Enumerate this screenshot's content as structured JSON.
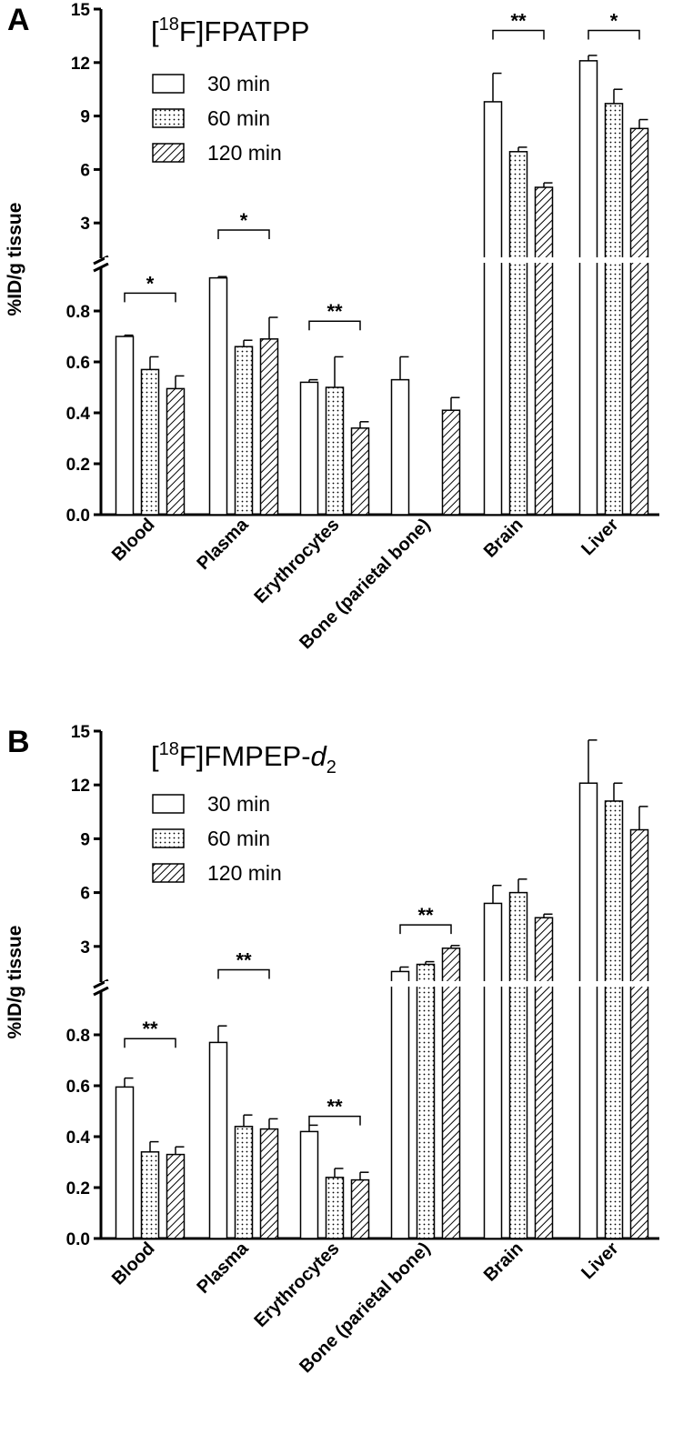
{
  "chart_data": [
    {
      "type": "bar",
      "panel": "A",
      "title": "[18F]FPATPP",
      "title_parts": {
        "open": "[",
        "sup": "18",
        "rest": "F]FPATPP",
        "italic_tail": "",
        "sub": ""
      },
      "ylabel": "%ID/g tissue",
      "y_scale": "broken",
      "y_lower_range": [
        0,
        1.0
      ],
      "y_upper_range": [
        1.0,
        15
      ],
      "y_ticks_lower": [
        "0.0",
        "0.2",
        "0.4",
        "0.6",
        "0.8"
      ],
      "y_ticks_upper": [
        "3",
        "6",
        "9",
        "12",
        "15"
      ],
      "categories": [
        "Blood",
        "Plasma",
        "Erythrocytes",
        "Bone (parietal bone)",
        "Brain",
        "Liver"
      ],
      "series": [
        {
          "name": "30 min",
          "pattern": "open",
          "values": [
            0.7,
            0.93,
            0.52,
            0.53,
            9.8,
            12.1
          ],
          "errors": [
            0.005,
            0.005,
            0.01,
            0.09,
            1.6,
            0.3
          ]
        },
        {
          "name": "60 min",
          "pattern": "dotted",
          "values": [
            0.57,
            0.66,
            0.5,
            null,
            7.0,
            9.7
          ],
          "errors": [
            0.05,
            0.025,
            0.12,
            null,
            0.25,
            0.8
          ]
        },
        {
          "name": "120 min",
          "pattern": "hatched",
          "values": [
            0.495,
            0.69,
            0.34,
            0.41,
            5.0,
            8.3
          ],
          "errors": [
            0.05,
            0.085,
            0.025,
            0.05,
            0.25,
            0.5
          ]
        }
      ],
      "significance": [
        {
          "category": "Blood",
          "label": "*",
          "y": 0.87
        },
        {
          "category": "Plasma",
          "label": "*",
          "y": 2.6
        },
        {
          "category": "Erythrocytes",
          "label": "**",
          "y": 0.76
        },
        {
          "category": "Brain",
          "label": "**",
          "y": 13.8
        },
        {
          "category": "Liver",
          "label": "*",
          "y": 13.8
        }
      ],
      "legend_position": "top-left"
    },
    {
      "type": "bar",
      "panel": "B",
      "title": "[18F]FMPEP-d2",
      "title_parts": {
        "open": "[",
        "sup": "18",
        "rest": "F]FMPEP-",
        "italic_tail": "d",
        "sub": "2"
      },
      "ylabel": "%ID/g tissue",
      "y_scale": "broken",
      "y_lower_range": [
        0,
        1.0
      ],
      "y_upper_range": [
        1.0,
        15
      ],
      "y_ticks_lower": [
        "0.0",
        "0.2",
        "0.4",
        "0.6",
        "0.8"
      ],
      "y_ticks_upper": [
        "3",
        "6",
        "9",
        "12",
        "15"
      ],
      "categories": [
        "Blood",
        "Plasma",
        "Erythrocytes",
        "Bone (parietal bone)",
        "Brain",
        "Liver"
      ],
      "series": [
        {
          "name": "30 min",
          "pattern": "open",
          "values": [
            0.595,
            0.77,
            0.42,
            1.6,
            5.4,
            12.1
          ],
          "errors": [
            0.035,
            0.065,
            0.025,
            0.25,
            1.0,
            2.4
          ]
        },
        {
          "name": "60 min",
          "pattern": "dotted",
          "values": [
            0.34,
            0.44,
            0.24,
            2.0,
            6.0,
            11.1
          ],
          "errors": [
            0.04,
            0.045,
            0.035,
            0.15,
            0.75,
            1.0
          ]
        },
        {
          "name": "120 min",
          "pattern": "hatched",
          "values": [
            0.33,
            0.43,
            0.23,
            2.9,
            4.6,
            9.5
          ],
          "errors": [
            0.03,
            0.04,
            0.03,
            0.15,
            0.2,
            1.3
          ]
        }
      ],
      "significance": [
        {
          "category": "Blood",
          "label": "**",
          "y": 0.785
        },
        {
          "category": "Plasma",
          "label": "**",
          "y": 1.7
        },
        {
          "category": "Erythrocytes",
          "label": "**",
          "y": 0.48
        },
        {
          "category": "Bone (parietal bone)",
          "label": "**",
          "y": 4.2
        }
      ],
      "legend_position": "top-left"
    }
  ]
}
